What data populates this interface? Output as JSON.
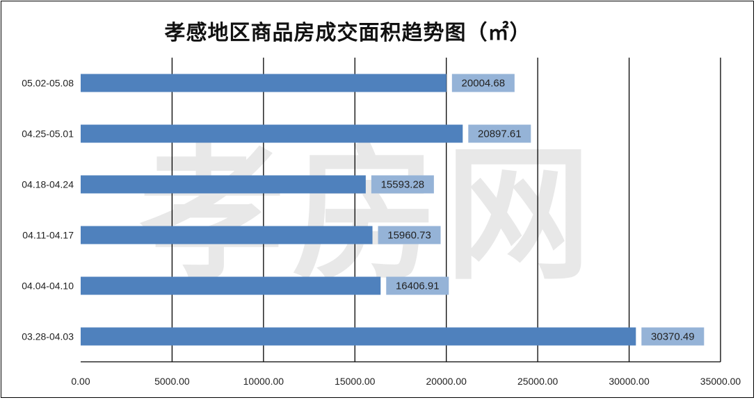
{
  "chart_data": {
    "type": "bar",
    "orientation": "horizontal",
    "title": "孝感地区商品房成交面积趋势图（㎡）",
    "categories": [
      "05.02-05.08",
      "04.25-05.01",
      "04.18-04.24",
      "04.11-04.17",
      "04.04-04.10",
      "03.28-04.03"
    ],
    "values": [
      20004.68,
      20897.61,
      15593.28,
      15960.73,
      16406.91,
      30370.49
    ],
    "value_labels": [
      "20004.68",
      "20897.61",
      "15593.28",
      "15960.73",
      "16406.91",
      "30370.49"
    ],
    "xlim": [
      0,
      35000
    ],
    "x_ticks": [
      0,
      5000,
      10000,
      15000,
      20000,
      25000,
      30000,
      35000
    ],
    "x_tick_labels": [
      "0.00",
      "5000.00",
      "10000.00",
      "15000.00",
      "20000.00",
      "25000.00",
      "30000.00",
      "35000.00"
    ],
    "xlabel": "",
    "ylabel": "",
    "grid": "vertical",
    "legend": "none",
    "colors": {
      "bar": "#4f81bd",
      "label_box": "#95b3d7",
      "grid": "#000000"
    }
  }
}
